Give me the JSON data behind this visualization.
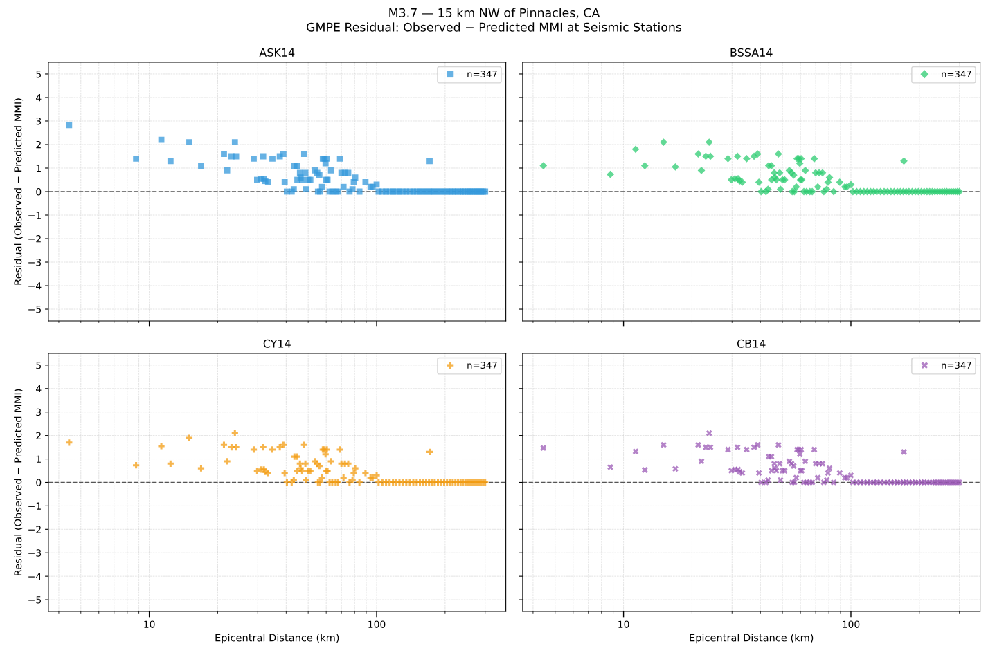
{
  "chart_data": [
    {
      "type": "scatter",
      "title": "ASK14",
      "ylabel": "Residual (Observed − Predicted MMI)",
      "annotations": [
        "M3.7 — 15 km NW of Pinnacles, CA",
        "GMPE Residual: Observed − Predicted MMI at Seismic Stations"
      ],
      "log": "x",
      "xlim": [
        3.6,
        370
      ],
      "ylim": [
        -5.5,
        5.5
      ],
      "yticks": [
        {
          "value": -5,
          "label": "−5"
        },
        {
          "value": -4,
          "label": "−4"
        },
        {
          "value": -3,
          "label": "−3"
        },
        {
          "value": -2,
          "label": "−2"
        },
        {
          "value": -1,
          "label": "−1"
        },
        0,
        1,
        2,
        3,
        4,
        5
      ],
      "grid": true,
      "legend": "top right",
      "tick_labels": "y",
      "marker": "square",
      "ref_lines": [
        {
          "axis": "y",
          "value": 0,
          "color": "#555555",
          "line_style": "dashed"
        }
      ],
      "series": [
        {
          "name": "n=347",
          "color": "#3498db",
          "x": [
            4.44,
            8.75,
            11.3,
            12.4,
            15.0,
            16.9,
            21.3,
            22.0,
            23.0,
            23.8,
            24.1,
            28.8,
            29.8,
            30.9,
            31.7,
            31.9,
            32.4,
            33.3,
            34.8,
            37.5,
            38.9,
            39.4,
            40.3,
            42.3,
            43.2,
            43.5,
            44.7,
            44.8,
            46.0,
            46.3,
            47.0,
            48.0,
            48.6,
            49.0,
            50.0,
            51.1,
            53.6,
            54.8,
            55.2,
            56.0,
            56.4,
            57.5,
            58.0,
            59.0,
            59.6,
            60.0,
            60.4,
            60.8,
            62.1,
            63.0,
            63.8,
            66.0,
            67.6,
            69.0,
            70.0,
            71.5,
            72.5,
            75.0,
            76.0,
            78.3,
            79.3,
            80.5,
            84.0,
            89.3,
            94.0,
            96.0,
            100,
            102,
            106,
            110,
            114,
            118,
            122,
            126,
            130,
            135,
            140,
            145,
            150,
            155,
            160,
            165,
            170,
            171,
            175,
            180,
            186,
            192,
            198,
            204,
            210,
            216,
            222,
            228,
            234,
            240,
            246,
            252,
            258,
            264,
            270,
            276,
            282,
            288,
            294,
            300
          ],
          "values": [
            2.83,
            1.4,
            2.2,
            1.3,
            2.1,
            1.1,
            1.6,
            0.9,
            1.5,
            2.1,
            1.5,
            1.4,
            0.5,
            0.55,
            1.5,
            0.55,
            0.45,
            0.4,
            1.4,
            1.5,
            1.6,
            0.4,
            0,
            0,
            0.1,
            1.1,
            1.1,
            0.5,
            0.8,
            0.6,
            0.5,
            1.6,
            0.8,
            0.1,
            0.5,
            0.5,
            0.9,
            0.8,
            0,
            0.7,
            0,
            0.2,
            1.4,
            1.4,
            1.2,
            0.5,
            1.4,
            0.5,
            0,
            0.9,
            0,
            0,
            0,
            1.4,
            0.8,
            0.2,
            0.8,
            0.8,
            0,
            0.1,
            0.4,
            0.6,
            0,
            0.4,
            0.2,
            0.2,
            0.3,
            0,
            0,
            0,
            0,
            0,
            0,
            0,
            0,
            0,
            0,
            0,
            0,
            0,
            0,
            0,
            0,
            1.3,
            0,
            0,
            0,
            0,
            0,
            0,
            0,
            0,
            0,
            0,
            0,
            0,
            0,
            0,
            0,
            0,
            0,
            0,
            0,
            0,
            0,
            0
          ]
        }
      ]
    },
    {
      "type": "scatter",
      "title": "BSSA14",
      "log": "x",
      "xlim": [
        3.6,
        370
      ],
      "ylim": [
        -5.5,
        5.5
      ],
      "yticks": [
        {
          "value": -5,
          "label": null
        },
        {
          "value": -4,
          "label": null
        },
        {
          "value": -3,
          "label": null
        },
        {
          "value": -2,
          "label": null
        },
        {
          "value": -1,
          "label": null
        },
        {
          "value": 0,
          "label": null
        },
        {
          "value": 1,
          "label": null
        },
        {
          "value": 2,
          "label": null
        },
        {
          "value": 3,
          "label": null
        },
        {
          "value": 4,
          "label": null
        },
        {
          "value": 5,
          "label": null
        }
      ],
      "grid": true,
      "legend": "top right",
      "tick_labels": false,
      "marker": "diamond",
      "ref_lines": [
        {
          "axis": "y",
          "value": 0,
          "color": "#555555",
          "line_style": "dashed"
        }
      ],
      "series": [
        {
          "name": "n=347",
          "color": "#2ecc71",
          "x": [
            4.44,
            8.75,
            11.3,
            12.4,
            15.0,
            16.9,
            21.3,
            22.0,
            23.0,
            23.8,
            24.1,
            28.8,
            29.8,
            30.9,
            31.7,
            31.9,
            32.4,
            33.3,
            34.8,
            37.5,
            38.9,
            39.4,
            40.3,
            42.3,
            43.2,
            43.5,
            44.7,
            44.8,
            46.0,
            46.3,
            47.0,
            48.0,
            48.6,
            49.0,
            50.0,
            51.1,
            53.6,
            54.8,
            55.2,
            56.0,
            56.4,
            57.5,
            58.0,
            59.0,
            59.6,
            60.0,
            60.4,
            60.8,
            62.1,
            63.0,
            63.8,
            66.0,
            67.6,
            69.0,
            70.0,
            71.5,
            72.5,
            75.0,
            76.0,
            78.3,
            79.3,
            80.5,
            84.0,
            89.3,
            94.0,
            96.0,
            100,
            102,
            106,
            110,
            114,
            118,
            122,
            126,
            130,
            135,
            140,
            145,
            150,
            155,
            160,
            165,
            170,
            171,
            175,
            180,
            186,
            192,
            198,
            204,
            210,
            216,
            222,
            228,
            234,
            240,
            246,
            252,
            258,
            264,
            270,
            276,
            282,
            288,
            294,
            300
          ],
          "values": [
            1.1,
            0.73,
            1.8,
            1.1,
            2.1,
            1.05,
            1.6,
            0.9,
            1.5,
            2.1,
            1.5,
            1.4,
            0.5,
            0.55,
            1.5,
            0.55,
            0.45,
            0.4,
            1.4,
            1.5,
            1.6,
            0.4,
            0,
            0,
            0.1,
            1.1,
            1.1,
            0.5,
            0.8,
            0.6,
            0.5,
            1.6,
            0.8,
            0.1,
            0.5,
            0.5,
            0.9,
            0.8,
            0,
            0.7,
            0,
            0.2,
            1.4,
            1.4,
            1.2,
            0.5,
            1.4,
            0.5,
            0,
            0.9,
            0,
            0,
            0,
            1.4,
            0.8,
            0.2,
            0.8,
            0.8,
            0,
            0.1,
            0.4,
            0.6,
            0,
            0.4,
            0.2,
            0.2,
            0.3,
            0,
            0,
            0,
            0,
            0,
            0,
            0,
            0,
            0,
            0,
            0,
            0,
            0,
            0,
            0,
            0,
            1.3,
            0,
            0,
            0,
            0,
            0,
            0,
            0,
            0,
            0,
            0,
            0,
            0,
            0,
            0,
            0,
            0,
            0,
            0,
            0,
            0,
            0,
            0
          ]
        }
      ]
    },
    {
      "type": "scatter",
      "title": "CY14",
      "xlabel": "Epicentral Distance (km)",
      "ylabel": "Residual (Observed − Predicted MMI)",
      "log": "x",
      "xlim": [
        3.6,
        370
      ],
      "xticks": [
        10,
        100
      ],
      "ylim": [
        -5.5,
        5.5
      ],
      "yticks": [
        {
          "value": -5,
          "label": "−5"
        },
        {
          "value": -4,
          "label": "−4"
        },
        {
          "value": -3,
          "label": "−3"
        },
        {
          "value": -2,
          "label": "−2"
        },
        {
          "value": -1,
          "label": "−1"
        },
        0,
        1,
        2,
        3,
        4,
        5
      ],
      "grid": true,
      "legend": "top right",
      "marker": "plus",
      "ref_lines": [
        {
          "axis": "y",
          "value": 0,
          "color": "#555555",
          "line_style": "dashed"
        }
      ],
      "series": [
        {
          "name": "n=347",
          "color": "#f39c12",
          "x": [
            4.44,
            8.75,
            11.3,
            12.4,
            15.0,
            16.9,
            21.3,
            22.0,
            23.0,
            23.8,
            24.1,
            28.8,
            29.8,
            30.9,
            31.7,
            31.9,
            32.4,
            33.3,
            34.8,
            37.5,
            38.9,
            39.4,
            40.3,
            42.3,
            43.2,
            43.5,
            44.7,
            44.8,
            46.0,
            46.3,
            47.0,
            48.0,
            48.6,
            49.0,
            50.0,
            51.1,
            53.6,
            54.8,
            55.2,
            56.0,
            56.4,
            57.5,
            58.0,
            59.0,
            59.6,
            60.0,
            60.4,
            60.8,
            62.1,
            63.0,
            63.8,
            66.0,
            67.6,
            69.0,
            70.0,
            71.5,
            72.5,
            75.0,
            76.0,
            78.3,
            79.3,
            80.5,
            84.0,
            89.3,
            94.0,
            96.0,
            100,
            102,
            106,
            110,
            114,
            118,
            122,
            126,
            130,
            135,
            140,
            145,
            150,
            155,
            160,
            165,
            170,
            171,
            175,
            180,
            186,
            192,
            198,
            204,
            210,
            216,
            222,
            228,
            234,
            240,
            246,
            252,
            258,
            264,
            270,
            276,
            282,
            288,
            294,
            300
          ],
          "values": [
            1.7,
            0.73,
            1.55,
            0.8,
            1.9,
            0.6,
            1.6,
            0.9,
            1.5,
            2.1,
            1.5,
            1.4,
            0.5,
            0.55,
            1.5,
            0.55,
            0.45,
            0.4,
            1.4,
            1.5,
            1.6,
            0.4,
            0,
            0,
            0.1,
            1.1,
            1.1,
            0.5,
            0.8,
            0.6,
            0.5,
            1.6,
            0.8,
            0.1,
            0.5,
            0.5,
            0.9,
            0.8,
            0,
            0.7,
            0,
            0.2,
            1.4,
            1.4,
            1.2,
            0.5,
            1.4,
            0.5,
            0,
            0.9,
            0,
            0,
            0,
            1.4,
            0.8,
            0.2,
            0.8,
            0.8,
            0,
            0.1,
            0.4,
            0.6,
            0,
            0.4,
            0.2,
            0.2,
            0.3,
            0,
            0,
            0,
            0,
            0,
            0,
            0,
            0,
            0,
            0,
            0,
            0,
            0,
            0,
            0,
            0,
            1.3,
            0,
            0,
            0,
            0,
            0,
            0,
            0,
            0,
            0,
            0,
            0,
            0,
            0,
            0,
            0,
            0,
            0,
            0,
            0,
            0,
            0,
            0
          ]
        }
      ]
    },
    {
      "type": "scatter",
      "title": "CB14",
      "xlabel": "Epicentral Distance (km)",
      "log": "x",
      "xlim": [
        3.6,
        370
      ],
      "xticks": [
        10,
        100
      ],
      "ylim": [
        -5.5,
        5.5
      ],
      "yticks": [
        {
          "value": -5,
          "label": null
        },
        {
          "value": -4,
          "label": null
        },
        {
          "value": -3,
          "label": null
        },
        {
          "value": -2,
          "label": null
        },
        {
          "value": -1,
          "label": null
        },
        {
          "value": 0,
          "label": null
        },
        {
          "value": 1,
          "label": null
        },
        {
          "value": 2,
          "label": null
        },
        {
          "value": 3,
          "label": null
        },
        {
          "value": 4,
          "label": null
        },
        {
          "value": 5,
          "label": null
        }
      ],
      "grid": true,
      "legend": "top right",
      "tick_labels": "x",
      "marker": "cross",
      "ref_lines": [
        {
          "axis": "y",
          "value": 0,
          "color": "#555555",
          "line_style": "dashed"
        }
      ],
      "series": [
        {
          "name": "n=347",
          "color": "#9b59b6",
          "x": [
            4.44,
            8.75,
            11.3,
            12.4,
            15.0,
            16.9,
            21.3,
            22.0,
            23.0,
            23.8,
            24.1,
            28.8,
            29.8,
            30.9,
            31.7,
            31.9,
            32.4,
            33.3,
            34.8,
            37.5,
            38.9,
            39.4,
            40.3,
            42.3,
            43.2,
            43.5,
            44.7,
            44.8,
            46.0,
            46.3,
            47.0,
            48.0,
            48.6,
            49.0,
            50.0,
            51.1,
            53.6,
            54.8,
            55.2,
            56.0,
            56.4,
            57.5,
            58.0,
            59.0,
            59.6,
            60.0,
            60.4,
            60.8,
            62.1,
            63.0,
            63.8,
            66.0,
            67.6,
            69.0,
            70.0,
            71.5,
            72.5,
            75.0,
            76.0,
            78.3,
            79.3,
            80.5,
            84.0,
            89.3,
            94.0,
            96.0,
            100,
            102,
            106,
            110,
            114,
            118,
            122,
            126,
            130,
            135,
            140,
            145,
            150,
            155,
            160,
            165,
            170,
            171,
            175,
            180,
            186,
            192,
            198,
            204,
            210,
            216,
            222,
            228,
            234,
            240,
            246,
            252,
            258,
            264,
            270,
            276,
            282,
            288,
            294,
            300
          ],
          "values": [
            1.47,
            0.65,
            1.32,
            0.53,
            1.6,
            0.58,
            1.6,
            0.9,
            1.5,
            2.1,
            1.5,
            1.4,
            0.5,
            0.55,
            1.5,
            0.55,
            0.45,
            0.4,
            1.4,
            1.5,
            1.6,
            0.4,
            0,
            0,
            0.1,
            1.1,
            1.1,
            0.5,
            0.8,
            0.6,
            0.5,
            1.6,
            0.8,
            0.1,
            0.5,
            0.5,
            0.9,
            0.8,
            0,
            0.7,
            0,
            0.2,
            1.4,
            1.4,
            1.2,
            0.5,
            1.4,
            0.5,
            0,
            0.9,
            0,
            0,
            0,
            1.4,
            0.8,
            0.2,
            0.8,
            0.8,
            0,
            0.1,
            0.4,
            0.6,
            0,
            0.4,
            0.2,
            0.2,
            0.3,
            0,
            0,
            0,
            0,
            0,
            0,
            0,
            0,
            0,
            0,
            0,
            0,
            0,
            0,
            0,
            0,
            1.3,
            0,
            0,
            0,
            0,
            0,
            0,
            0,
            0,
            0,
            0,
            0,
            0,
            0,
            0,
            0,
            0,
            0,
            0,
            0,
            0,
            0,
            0
          ]
        }
      ]
    }
  ]
}
